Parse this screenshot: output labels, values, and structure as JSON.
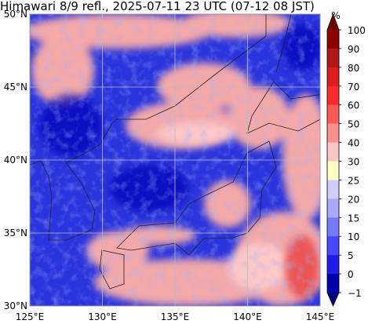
{
  "map": {
    "title": "Himawari 8/9 refl., 2025-07-11 23 UTC (07-12 08 JST)",
    "lon_labels": [
      "125°E",
      "130°E",
      "135°E",
      "140°E",
      "145°E"
    ],
    "lat_labels": [
      "50°N",
      "45°N",
      "40°N",
      "35°N",
      "30°N"
    ],
    "colorbar": {
      "unit": "%",
      "ticks": [
        "100",
        "90",
        "80",
        "70",
        "60",
        "50",
        "40",
        "30",
        "25",
        "20",
        "15",
        "10",
        "5",
        "0",
        "−1"
      ],
      "colors": [
        "#8b0000",
        "#b01818",
        "#dd1c1c",
        "#ff2a2a",
        "#ff5a5a",
        "#ff9090",
        "#ffc4c4",
        "#ffffc4",
        "#cfcfff",
        "#a8a8ff",
        "#7878ff",
        "#4848ff",
        "#1e1ee6",
        "#0000a8"
      ],
      "extend_colors": [
        "#6e0000",
        "#00007a"
      ]
    }
  }
}
